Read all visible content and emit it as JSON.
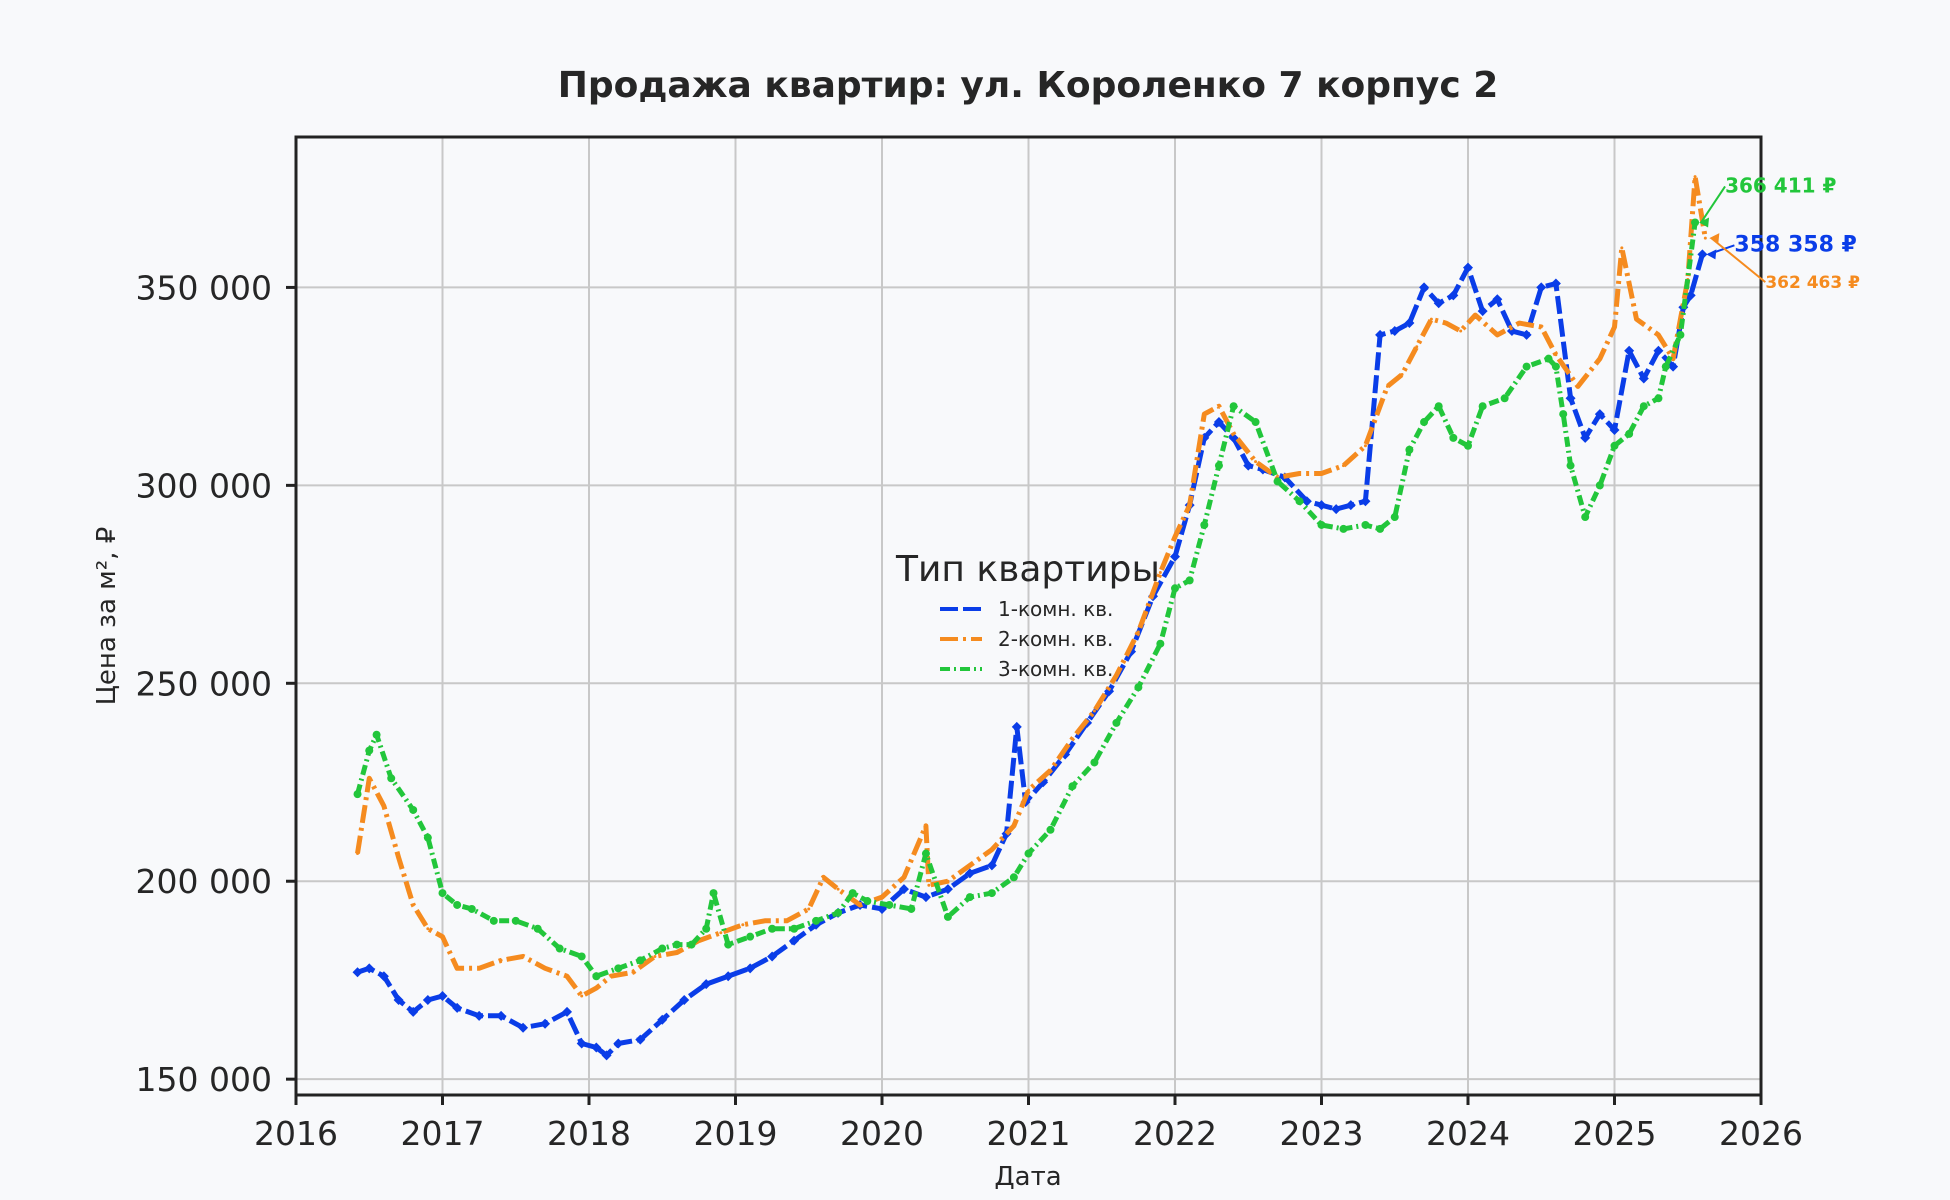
{
  "chart_data": {
    "type": "line",
    "title": "Продажа квартир: ул. Короленко 7 корпус 2",
    "xlabel": "Дата",
    "ylabel": "Цена за м², ₽",
    "xlim": [
      2016.0,
      2026.0
    ],
    "ylim": [
      146000,
      388000
    ],
    "x_ticks": [
      2016,
      2017,
      2018,
      2019,
      2020,
      2021,
      2022,
      2023,
      2024,
      2025,
      2026
    ],
    "x_tick_labels": [
      "2016",
      "2017",
      "2018",
      "2019",
      "2020",
      "2021",
      "2022",
      "2023",
      "2024",
      "2025",
      "2026"
    ],
    "y_ticks": [
      150000,
      200000,
      250000,
      300000,
      350000
    ],
    "y_tick_labels": [
      "150 000",
      "200 000",
      "250 000",
      "300 000",
      "350 000"
    ],
    "grid": true,
    "legend": {
      "title": "Тип квартиры",
      "placement": "center"
    },
    "series": [
      {
        "name": "1-комн. кв.",
        "color": "#0a3de8",
        "dash": "18 5",
        "marker": "diamond",
        "x": [
          2016.42,
          2016.5,
          2016.6,
          2016.7,
          2016.8,
          2016.9,
          2017.0,
          2017.1,
          2017.25,
          2017.4,
          2017.55,
          2017.7,
          2017.85,
          2017.95,
          2018.05,
          2018.12,
          2018.2,
          2018.35,
          2018.5,
          2018.65,
          2018.8,
          2018.95,
          2019.1,
          2019.25,
          2019.4,
          2019.55,
          2019.7,
          2019.85,
          2020.0,
          2020.15,
          2020.3,
          2020.45,
          2020.6,
          2020.75,
          2020.85,
          2020.92,
          2020.98,
          2021.1,
          2021.25,
          2021.4,
          2021.55,
          2021.7,
          2021.85,
          2022.0,
          2022.1,
          2022.2,
          2022.3,
          2022.4,
          2022.5,
          2022.6,
          2022.75,
          2022.9,
          2023.0,
          2023.1,
          2023.2,
          2023.3,
          2023.4,
          2023.5,
          2023.6,
          2023.7,
          2023.8,
          2023.9,
          2024.0,
          2024.1,
          2024.2,
          2024.3,
          2024.4,
          2024.5,
          2024.6,
          2024.7,
          2024.8,
          2024.9,
          2025.0,
          2025.1,
          2025.2,
          2025.3,
          2025.4,
          2025.47,
          2025.52,
          2025.6
        ],
        "y": [
          177000,
          178000,
          176000,
          170000,
          167000,
          170000,
          171000,
          168000,
          166000,
          166000,
          163000,
          164000,
          167000,
          159000,
          158000,
          156000,
          159000,
          160000,
          165000,
          170000,
          174000,
          176000,
          178000,
          181000,
          185000,
          189000,
          192000,
          194000,
          193000,
          198000,
          196000,
          198000,
          202000,
          204000,
          212000,
          239000,
          220000,
          225000,
          232000,
          240000,
          248000,
          258000,
          272000,
          282000,
          295000,
          312000,
          316000,
          312000,
          305000,
          304000,
          302000,
          296000,
          295000,
          294000,
          295000,
          296000,
          338000,
          339000,
          341000,
          350000,
          346000,
          348000,
          355000,
          344000,
          347000,
          339000,
          338000,
          350000,
          351000,
          322000,
          312000,
          318000,
          314000,
          334000,
          327000,
          334000,
          330000,
          345000,
          348000,
          358358
        ]
      },
      {
        "name": "2-комн. кв.",
        "color": "#f58b1f",
        "dash": "18 5 3 5",
        "marker": "none",
        "x": [
          2016.42,
          2016.5,
          2016.6,
          2016.7,
          2016.8,
          2016.9,
          2017.0,
          2017.1,
          2017.25,
          2017.4,
          2017.55,
          2017.7,
          2017.85,
          2017.95,
          2018.05,
          2018.15,
          2018.3,
          2018.45,
          2018.6,
          2018.75,
          2018.9,
          2019.05,
          2019.2,
          2019.35,
          2019.5,
          2019.6,
          2019.7,
          2019.85,
          2020.0,
          2020.15,
          2020.3,
          2020.32,
          2020.45,
          2020.6,
          2020.75,
          2020.9,
          2021.0,
          2021.15,
          2021.3,
          2021.45,
          2021.6,
          2021.75,
          2021.9,
          2022.0,
          2022.1,
          2022.2,
          2022.3,
          2022.4,
          2022.55,
          2022.7,
          2022.85,
          2023.0,
          2023.15,
          2023.3,
          2023.45,
          2023.55,
          2023.65,
          2023.75,
          2023.85,
          2023.95,
          2024.05,
          2024.2,
          2024.35,
          2024.5,
          2024.6,
          2024.75,
          2024.9,
          2025.0,
          2025.05,
          2025.15,
          2025.3,
          2025.4,
          2025.5,
          2025.55,
          2025.62
        ],
        "y": [
          207000,
          226000,
          219000,
          206000,
          194000,
          188000,
          186000,
          178000,
          178000,
          180000,
          181000,
          178000,
          176000,
          171000,
          173000,
          176000,
          177000,
          181000,
          182000,
          185000,
          187000,
          189000,
          190000,
          190000,
          193000,
          201000,
          198000,
          194000,
          196000,
          201000,
          214000,
          199000,
          200000,
          204000,
          208000,
          214000,
          223000,
          228000,
          236000,
          243000,
          252000,
          263000,
          278000,
          287000,
          295000,
          318000,
          320000,
          313000,
          306000,
          302000,
          303000,
          303000,
          305000,
          310000,
          325000,
          328000,
          335000,
          342000,
          341000,
          339000,
          343000,
          338000,
          341000,
          340000,
          333000,
          325000,
          332000,
          340000,
          360000,
          342000,
          338000,
          332000,
          352000,
          378000,
          362463
        ]
      },
      {
        "name": "3-комн. кв.",
        "color": "#22c63b",
        "dash": "10 4 2 4",
        "marker": "circle",
        "x": [
          2016.42,
          2016.5,
          2016.55,
          2016.65,
          2016.8,
          2016.9,
          2017.0,
          2017.1,
          2017.2,
          2017.35,
          2017.5,
          2017.65,
          2017.8,
          2017.95,
          2018.05,
          2018.2,
          2018.35,
          2018.5,
          2018.6,
          2018.7,
          2018.8,
          2018.85,
          2018.95,
          2019.1,
          2019.25,
          2019.4,
          2019.55,
          2019.7,
          2019.8,
          2019.9,
          2020.05,
          2020.2,
          2020.3,
          2020.45,
          2020.6,
          2020.75,
          2020.9,
          2021.0,
          2021.15,
          2021.3,
          2021.45,
          2021.6,
          2021.75,
          2021.9,
          2022.0,
          2022.1,
          2022.2,
          2022.3,
          2022.4,
          2022.55,
          2022.7,
          2022.85,
          2023.0,
          2023.15,
          2023.3,
          2023.4,
          2023.5,
          2023.6,
          2023.7,
          2023.8,
          2023.9,
          2024.0,
          2024.1,
          2024.25,
          2024.4,
          2024.55,
          2024.6,
          2024.65,
          2024.7,
          2024.8,
          2024.9,
          2025.0,
          2025.1,
          2025.2,
          2025.3,
          2025.35,
          2025.45,
          2025.55
        ],
        "y": [
          222000,
          233000,
          237000,
          226000,
          218000,
          211000,
          197000,
          194000,
          193000,
          190000,
          190000,
          188000,
          183000,
          181000,
          176000,
          178000,
          180000,
          183000,
          184000,
          184000,
          188000,
          197000,
          184000,
          186000,
          188000,
          188000,
          190000,
          192000,
          197000,
          195000,
          194000,
          193000,
          207000,
          191000,
          196000,
          197000,
          201000,
          207000,
          213000,
          224000,
          230000,
          240000,
          249000,
          260000,
          274000,
          276000,
          290000,
          305000,
          320000,
          316000,
          301000,
          296000,
          290000,
          289000,
          290000,
          289000,
          292000,
          309000,
          316000,
          320000,
          312000,
          310000,
          320000,
          322000,
          330000,
          332000,
          330000,
          318000,
          305000,
          292000,
          300000,
          310000,
          313000,
          320000,
          322000,
          330000,
          338000,
          366411
        ]
      }
    ],
    "annotations": [
      {
        "series": "3-комн. кв.",
        "text": "366 411 ₽",
        "color": "#22c63b"
      },
      {
        "series": "1-комн. кв.",
        "text": "358 358 ₽",
        "color": "#0a3de8"
      },
      {
        "series": "2-комн. кв.",
        "text": "362 463 ₽",
        "color": "#f58b1f"
      }
    ]
  }
}
